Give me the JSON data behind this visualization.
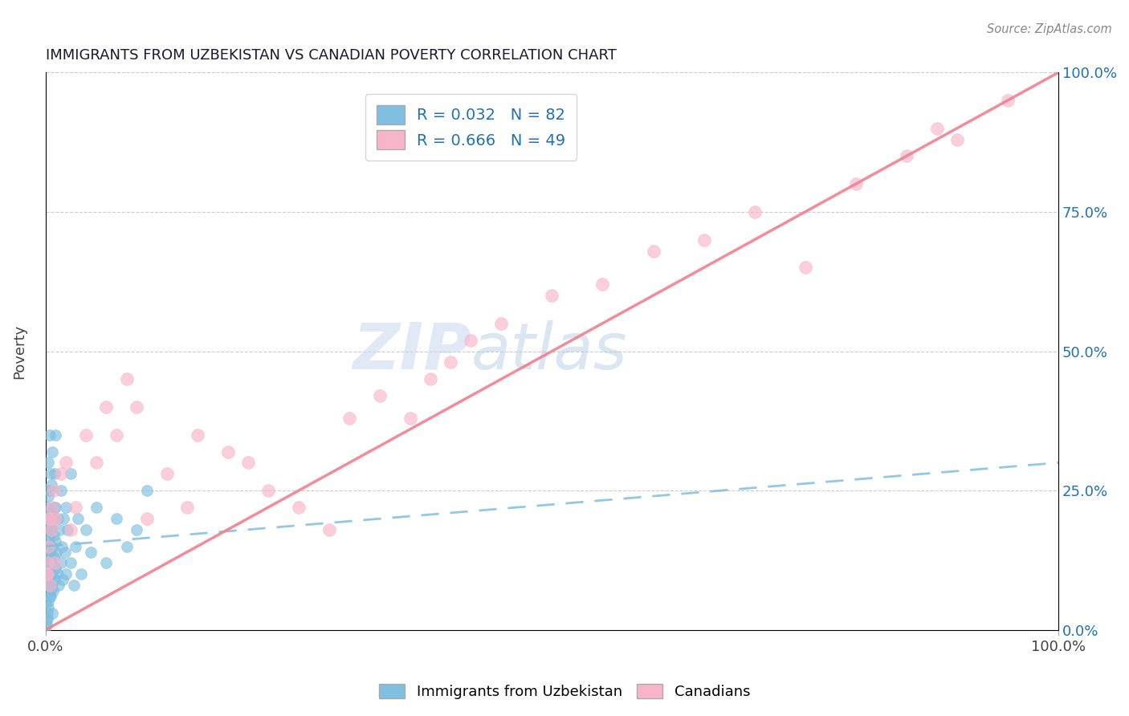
{
  "title": "IMMIGRANTS FROM UZBEKISTAN VS CANADIAN POVERTY CORRELATION CHART",
  "source_text": "Source: ZipAtlas.com",
  "ylabel": "Poverty",
  "watermark_zip": "ZIP",
  "watermark_atlas": "atlas",
  "xlim": [
    0,
    100
  ],
  "ylim": [
    0,
    100
  ],
  "legend_label1": "Immigrants from Uzbekistan",
  "legend_label2": "Canadians",
  "R1": 0.032,
  "N1": 82,
  "R2": 0.666,
  "N2": 49,
  "color_blue": "#7fbfdf",
  "color_pink": "#f8b4c8",
  "color_blue_line": "#7fbfdf",
  "color_pink_line": "#f08090",
  "color_blue_dark": "#2171b5",
  "blue_line_y0": 15,
  "blue_line_y100": 30,
  "pink_line_y0": 0,
  "pink_line_y100": 100,
  "blue_scatter_x": [
    0.05,
    0.1,
    0.1,
    0.15,
    0.15,
    0.2,
    0.2,
    0.2,
    0.25,
    0.25,
    0.3,
    0.3,
    0.3,
    0.3,
    0.35,
    0.35,
    0.4,
    0.4,
    0.4,
    0.4,
    0.45,
    0.45,
    0.5,
    0.5,
    0.5,
    0.5,
    0.55,
    0.6,
    0.6,
    0.6,
    0.65,
    0.7,
    0.7,
    0.7,
    0.75,
    0.8,
    0.8,
    0.85,
    0.9,
    0.9,
    1.0,
    1.0,
    1.0,
    1.0,
    1.1,
    1.2,
    1.2,
    1.3,
    1.4,
    1.5,
    1.5,
    1.6,
    1.7,
    1.8,
    1.9,
    2.0,
    2.0,
    2.2,
    2.5,
    2.5,
    2.8,
    3.0,
    3.2,
    3.5,
    4.0,
    4.5,
    5.0,
    6.0,
    7.0,
    8.0,
    9.0,
    10.0,
    0.05,
    0.1,
    0.15,
    0.2,
    0.25,
    0.3,
    0.4,
    0.5,
    0.6,
    0.7
  ],
  "blue_scatter_y": [
    5,
    8,
    2,
    10,
    15,
    12,
    18,
    22,
    14,
    20,
    8,
    16,
    24,
    30,
    11,
    17,
    13,
    19,
    25,
    35,
    9,
    21,
    6,
    14,
    20,
    28,
    12,
    8,
    18,
    26,
    15,
    10,
    20,
    32,
    7,
    13,
    22,
    17,
    9,
    28,
    11,
    16,
    22,
    35,
    14,
    10,
    20,
    8,
    18,
    12,
    25,
    15,
    9,
    20,
    14,
    10,
    22,
    18,
    12,
    28,
    8,
    15,
    20,
    10,
    18,
    14,
    22,
    12,
    20,
    15,
    18,
    25,
    0.5,
    1,
    2,
    3,
    4,
    5,
    6,
    7,
    8,
    3
  ],
  "pink_scatter_x": [
    0.1,
    0.2,
    0.3,
    0.4,
    0.5,
    0.6,
    0.7,
    0.8,
    0.9,
    1.0,
    1.5,
    2.0,
    2.5,
    3.0,
    4.0,
    5.0,
    6.0,
    7.0,
    8.0,
    9.0,
    10.0,
    12.0,
    14.0,
    15.0,
    18.0,
    20.0,
    22.0,
    25.0,
    28.0,
    30.0,
    33.0,
    36.0,
    38.0,
    40.0,
    42.0,
    45.0,
    50.0,
    55.0,
    60.0,
    65.0,
    70.0,
    75.0,
    80.0,
    85.0,
    90.0,
    95.0,
    0.15,
    0.35,
    88.0
  ],
  "pink_scatter_y": [
    10,
    12,
    15,
    8,
    20,
    18,
    22,
    25,
    12,
    20,
    28,
    30,
    18,
    22,
    35,
    30,
    40,
    35,
    45,
    40,
    20,
    28,
    22,
    35,
    32,
    30,
    25,
    22,
    18,
    38,
    42,
    38,
    45,
    48,
    52,
    55,
    60,
    62,
    68,
    70,
    75,
    65,
    80,
    85,
    88,
    95,
    10,
    20,
    90
  ]
}
